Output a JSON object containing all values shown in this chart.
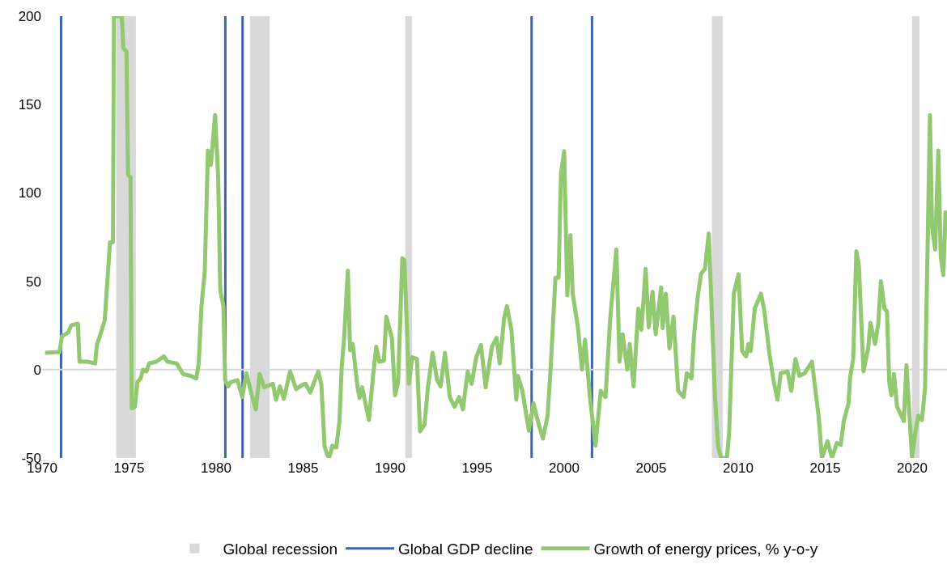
{
  "chart_data": {
    "type": "line",
    "xlim": [
      1970,
      2022
    ],
    "ylim": [
      -50,
      200
    ],
    "xticks": [
      1970,
      1975,
      1980,
      1985,
      1990,
      1995,
      2000,
      2005,
      2010,
      2015,
      2020
    ],
    "yticks": [
      -50,
      0,
      50,
      100,
      150,
      200
    ],
    "grid": false,
    "legend": "bottom",
    "marker": "none",
    "line_style": "solid",
    "series": [
      {
        "name": "Growth of energy prices, % y-o-y",
        "color": "#92c86f",
        "x": [
          1970.17,
          1971.0,
          1971.15,
          1971.5,
          1971.67,
          1972.06,
          1972.15,
          1972.6,
          1973.05,
          1973.15,
          1973.4,
          1973.6,
          1973.9,
          1974.07,
          1974.13,
          1974.58,
          1974.67,
          1974.85,
          1974.94,
          1975.08,
          1975.15,
          1975.33,
          1975.48,
          1975.66,
          1975.8,
          1976.0,
          1976.15,
          1976.56,
          1977.0,
          1977.2,
          1977.73,
          1978.1,
          1978.54,
          1978.86,
          1979.0,
          1979.16,
          1979.35,
          1979.53,
          1979.7,
          1979.94,
          1980.12,
          1980.24,
          1980.42,
          1980.52,
          1980.7,
          1980.84,
          1981.23,
          1981.5,
          1981.74,
          1982.04,
          1982.28,
          1982.5,
          1982.76,
          1983.26,
          1983.44,
          1983.67,
          1983.89,
          1984.25,
          1984.6,
          1984.97,
          1985.15,
          1985.41,
          1985.87,
          1986.05,
          1986.23,
          1986.37,
          1986.5,
          1986.68,
          1986.91,
          1987.09,
          1987.22,
          1987.35,
          1987.57,
          1987.7,
          1987.85,
          1988.12,
          1988.24,
          1988.39,
          1988.78,
          1989.02,
          1989.2,
          1989.38,
          1989.64,
          1989.78,
          1990.1,
          1990.28,
          1990.46,
          1990.7,
          1990.82,
          1991.08,
          1991.26,
          1991.54,
          1991.72,
          1991.98,
          1992.17,
          1992.44,
          1992.7,
          1992.9,
          1993.15,
          1993.43,
          1993.7,
          1993.97,
          1994.18,
          1994.46,
          1994.68,
          1994.95,
          1995.22,
          1995.49,
          1995.85,
          1996.12,
          1996.3,
          1996.55,
          1996.71,
          1996.97,
          1997.25,
          1997.34,
          1997.6,
          1997.88,
          1997.97,
          1998.24,
          1998.51,
          1998.78,
          1999.05,
          1999.23,
          1999.5,
          1999.68,
          1999.82,
          2000.0,
          2000.18,
          2000.36,
          2000.49,
          2000.79,
          2001.03,
          2001.2,
          2001.48,
          2001.8,
          2002.1,
          2002.38,
          2002.64,
          2003.0,
          2003.18,
          2003.36,
          2003.63,
          2003.77,
          2003.99,
          2004.26,
          2004.44,
          2004.68,
          2004.86,
          2005.08,
          2005.26,
          2005.57,
          2005.66,
          2005.84,
          2006.05,
          2006.28,
          2006.55,
          2006.87,
          2007.05,
          2007.32,
          2007.46,
          2007.68,
          2007.86,
          2008.09,
          2008.31,
          2008.67,
          2008.85,
          2009.03,
          2009.35,
          2009.48,
          2009.75,
          2010.02,
          2010.23,
          2010.46,
          2010.59,
          2010.72,
          2010.95,
          2011.31,
          2011.49,
          2011.79,
          2012.03,
          2012.26,
          2012.44,
          2012.84,
          2013.05,
          2013.29,
          2013.52,
          2013.82,
          2014.24,
          2014.63,
          2014.81,
          2014.95,
          2015.13,
          2015.39,
          2015.67,
          2015.89,
          2016.07,
          2016.34,
          2016.43,
          2016.61,
          2016.79,
          2016.94,
          2017.2,
          2017.47,
          2017.6,
          2017.87,
          2018.05,
          2018.2,
          2018.41,
          2018.55,
          2018.68,
          2018.8,
          2018.95,
          2019.13,
          2019.52,
          2019.67,
          2019.99,
          2020.17,
          2020.35,
          2020.56,
          2020.74,
          2021.02,
          2021.14,
          2021.32,
          2021.5,
          2021.64,
          2021.79,
          2021.92
        ],
        "values": [
          9.5,
          10,
          19,
          21,
          25,
          26,
          4.5,
          4.5,
          3.5,
          14,
          21.5,
          28,
          72,
          72,
          200,
          200,
          182,
          180,
          110,
          109,
          -22,
          -21,
          -7,
          -5,
          0,
          -1,
          3.5,
          4.5,
          7.5,
          4.5,
          3.5,
          -2.5,
          -3.5,
          -5,
          3.5,
          36,
          56,
          124,
          116,
          144,
          109,
          45,
          36,
          -6,
          -9.5,
          -7,
          -6,
          -15.5,
          -2,
          -14,
          -22.5,
          -2.5,
          -10,
          -8,
          -17,
          -9.5,
          -16.5,
          -1,
          -11,
          -8.5,
          -8,
          -13,
          -1,
          -8.5,
          -43,
          -48,
          -50,
          -43,
          -44,
          -29,
          2,
          17,
          56,
          11,
          14.5,
          -9.5,
          -16,
          -10,
          -28.5,
          -3.5,
          13,
          4.5,
          5,
          30,
          18,
          -14.5,
          -7,
          63,
          62,
          -8,
          7,
          6,
          -35,
          -31,
          -10,
          9.5,
          -6,
          -9.5,
          9.5,
          -15.5,
          -21,
          -15.5,
          -22.5,
          -1,
          -8,
          7,
          14,
          -10,
          13,
          18,
          3.5,
          29,
          36,
          22.5,
          -17,
          -3.5,
          -12,
          -29,
          -34.5,
          -19,
          -30,
          -39,
          -26,
          2,
          52,
          52,
          111,
          123.5,
          42,
          76,
          43,
          24,
          0,
          17,
          -15.5,
          -43,
          -12,
          -15.5,
          28,
          68,
          4.5,
          20,
          0,
          14.5,
          -9.5,
          34.5,
          22.5,
          57,
          24,
          44,
          20,
          46.5,
          23.5,
          43,
          12,
          30,
          -12,
          -15.5,
          -2,
          -5,
          19,
          41.5,
          54,
          57,
          77,
          -15.5,
          -44,
          -50,
          -50,
          -36,
          43,
          54,
          10.5,
          7.5,
          14.5,
          10.5,
          34.5,
          43,
          34,
          9.5,
          -6,
          -17,
          -2,
          -1,
          -12,
          6,
          -3.5,
          -2,
          4.5,
          -27,
          -50,
          -46,
          -40.5,
          -50,
          -41.5,
          -42.5,
          -29,
          -19,
          -4.5,
          6,
          67,
          58.5,
          -1,
          12,
          26.5,
          14.5,
          26,
          50,
          34.5,
          33,
          -7,
          -14.5,
          -2.5,
          -21,
          -29,
          2.5,
          -50,
          -36,
          -26,
          -28.5,
          -10,
          144,
          81,
          68,
          124,
          64,
          53.5,
          90
        ]
      }
    ],
    "bands": [
      {
        "axis": "x",
        "from": 1974.26,
        "to": 1975.39,
        "label": "Global recession",
        "color": "#d9d9d9"
      },
      {
        "axis": "x",
        "from": 1981.95,
        "to": 1983.08,
        "color": "#d9d9d9"
      },
      {
        "axis": "x",
        "from": 1990.87,
        "to": 1991.26,
        "color": "#d9d9d9"
      },
      {
        "axis": "x",
        "from": 2008.49,
        "to": 2009.12,
        "color": "#d9d9d9"
      },
      {
        "axis": "x",
        "from": 2019.99,
        "to": 2020.42,
        "color": "#d9d9d9"
      }
    ],
    "ref_lines": [
      {
        "axis": "x",
        "value": 1971.09,
        "label": "Global GDP decline",
        "color": "#3e64a8",
        "line_style": "solid"
      },
      {
        "axis": "x",
        "value": 1980.53,
        "color": "#3e64a8",
        "line_style": "solid"
      },
      {
        "axis": "x",
        "value": 1981.52,
        "color": "#3e64a8",
        "line_style": "solid"
      },
      {
        "axis": "x",
        "value": 1998.13,
        "color": "#3e64a8",
        "line_style": "solid"
      },
      {
        "axis": "x",
        "value": 2001.6,
        "color": "#3e64a8",
        "line_style": "solid"
      },
      {
        "axis": "y",
        "value": 0,
        "color": "#d9d9d9",
        "line_style": "solid"
      }
    ]
  }
}
